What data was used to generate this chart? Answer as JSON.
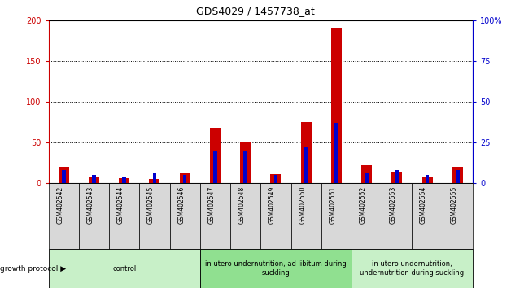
{
  "title": "GDS4029 / 1457738_at",
  "samples": [
    "GSM402542",
    "GSM402543",
    "GSM402544",
    "GSM402545",
    "GSM402546",
    "GSM402547",
    "GSM402548",
    "GSM402549",
    "GSM402550",
    "GSM402551",
    "GSM402552",
    "GSM402553",
    "GSM402554",
    "GSM402555"
  ],
  "count": [
    20,
    7,
    6,
    5,
    12,
    68,
    50,
    11,
    75,
    190,
    22,
    13,
    7,
    20
  ],
  "percentile": [
    8,
    5,
    4,
    6,
    5,
    20,
    20,
    5,
    22,
    37,
    6,
    8,
    5,
    8
  ],
  "groups": [
    {
      "label": "control",
      "start": 0,
      "end": 5,
      "color": "#c8f0c8"
    },
    {
      "label": "in utero undernutrition, ad libitum during\nsuckling",
      "start": 5,
      "end": 10,
      "color": "#90e090"
    },
    {
      "label": "in utero undernutrition,\nundernutrition during suckling",
      "start": 10,
      "end": 14,
      "color": "#c8f0c8"
    }
  ],
  "growth_protocol_label": "growth protocol",
  "left_axis_color": "#cc0000",
  "right_axis_color": "#0000cc",
  "bar_color_count": "#cc0000",
  "bar_color_percentile": "#0000cc",
  "left_ylim": [
    0,
    200
  ],
  "right_ylim": [
    0,
    100
  ],
  "left_yticks": [
    0,
    50,
    100,
    150,
    200
  ],
  "right_yticks": [
    0,
    25,
    50,
    75,
    100
  ],
  "right_yticklabels": [
    "0",
    "25",
    "50",
    "75",
    "100%"
  ],
  "bg_color": "#d8d8d8",
  "figsize": [
    6.28,
    3.54
  ],
  "dpi": 100
}
